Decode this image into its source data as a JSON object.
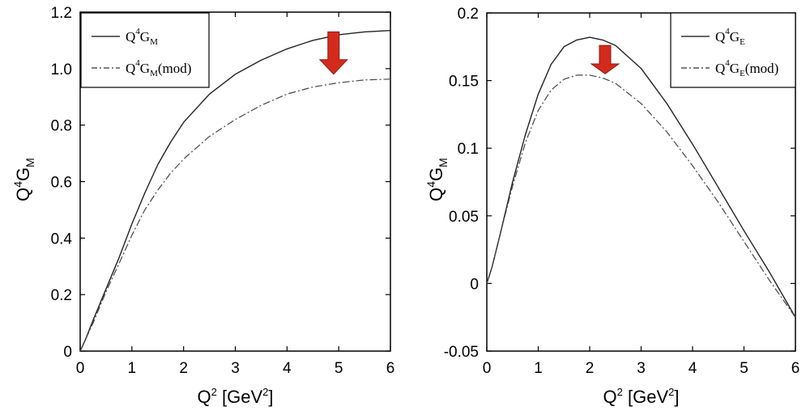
{
  "chart_data": [
    {
      "type": "line",
      "xlabel": "Q",
      "xlabel_sup": "2",
      "xlabel_unit_open": " [GeV",
      "xlabel_unit_sup": "2",
      "xlabel_unit_close": "]",
      "ylabel": "Q",
      "ylabel_sup": "4",
      "ylabel_main": "G",
      "ylabel_sub": "M",
      "xlim": [
        0,
        6
      ],
      "ylim": [
        0,
        1.2
      ],
      "x_ticks": [
        0,
        1,
        2,
        3,
        4,
        5,
        6
      ],
      "y_ticks": [
        0,
        0.2,
        0.4,
        0.6,
        0.8,
        1.0,
        1.2
      ],
      "x_tick_labels": [
        "0",
        "1",
        "2",
        "3",
        "4",
        "5",
        "6"
      ],
      "y_tick_labels": [
        "0",
        "0.2",
        "0.4",
        "0.6",
        "0.8",
        "1.0",
        "1.2"
      ],
      "legend_position": "top-left",
      "arrow": {
        "x": 4.9,
        "y_top": 1.13,
        "y_bottom": 0.98,
        "color": "#d42a1e"
      },
      "series": [
        {
          "name": "Q4GM",
          "legend": {
            "base": "Q",
            "sup": "4",
            "main": "G",
            "sub": "M",
            "suffix": ""
          },
          "style": "solid",
          "x": [
            0,
            0.1,
            0.25,
            0.5,
            0.75,
            1.0,
            1.25,
            1.5,
            1.75,
            2.0,
            2.5,
            3.0,
            3.5,
            4.0,
            4.5,
            5.0,
            5.5,
            6.0
          ],
          "y": [
            0,
            0.04,
            0.11,
            0.22,
            0.33,
            0.45,
            0.56,
            0.66,
            0.74,
            0.81,
            0.91,
            0.98,
            1.03,
            1.07,
            1.1,
            1.12,
            1.13,
            1.135
          ]
        },
        {
          "name": "Q4GM(mod)",
          "legend": {
            "base": "Q",
            "sup": "4",
            "main": "G",
            "sub": "M",
            "suffix": "(mod)"
          },
          "style": "dashdot",
          "x": [
            0,
            0.1,
            0.25,
            0.5,
            0.75,
            1.0,
            1.25,
            1.5,
            1.75,
            2.0,
            2.5,
            3.0,
            3.5,
            4.0,
            4.5,
            5.0,
            5.5,
            6.0
          ],
          "y": [
            0,
            0.04,
            0.1,
            0.21,
            0.31,
            0.41,
            0.5,
            0.57,
            0.63,
            0.68,
            0.76,
            0.82,
            0.87,
            0.91,
            0.935,
            0.95,
            0.96,
            0.963
          ]
        }
      ]
    },
    {
      "type": "line",
      "xlabel": "Q",
      "xlabel_sup": "2",
      "xlabel_unit_open": " [GeV",
      "xlabel_unit_sup": "2",
      "xlabel_unit_close": "]",
      "ylabel": "Q",
      "ylabel_sup": "4",
      "ylabel_main": "G",
      "ylabel_sub": "M",
      "xlim": [
        0,
        6
      ],
      "ylim": [
        -0.05,
        0.2
      ],
      "x_ticks": [
        0,
        1,
        2,
        3,
        4,
        5,
        6
      ],
      "y_ticks": [
        -0.05,
        0,
        0.05,
        0.1,
        0.15,
        0.2
      ],
      "x_tick_labels": [
        "0",
        "1",
        "2",
        "3",
        "4",
        "5",
        "6"
      ],
      "y_tick_labels": [
        "-0.05",
        "0",
        "0.05",
        "0.1",
        "0.15",
        "0.2"
      ],
      "legend_position": "top-right",
      "arrow": {
        "x": 2.3,
        "y_top": 0.176,
        "y_bottom": 0.155,
        "color": "#d42a1e"
      },
      "series": [
        {
          "name": "Q4GE",
          "legend": {
            "base": "Q",
            "sup": "4",
            "main": "G",
            "sub": "E",
            "suffix": ""
          },
          "style": "solid",
          "x": [
            0,
            0.1,
            0.25,
            0.5,
            0.75,
            1.0,
            1.25,
            1.5,
            1.75,
            2.0,
            2.25,
            2.5,
            3.0,
            3.5,
            4.0,
            4.5,
            5.0,
            5.5,
            6.0
          ],
          "y": [
            0,
            0.012,
            0.035,
            0.075,
            0.11,
            0.14,
            0.162,
            0.175,
            0.18,
            0.182,
            0.18,
            0.176,
            0.159,
            0.133,
            0.103,
            0.071,
            0.039,
            0.008,
            -0.025
          ]
        },
        {
          "name": "Q4GE(mod)",
          "legend": {
            "base": "Q",
            "sup": "4",
            "main": "G",
            "sub": "E",
            "suffix": "(mod)"
          },
          "style": "dashdot",
          "x": [
            0,
            0.1,
            0.25,
            0.5,
            0.75,
            1.0,
            1.25,
            1.5,
            1.75,
            2.0,
            2.25,
            2.5,
            3.0,
            3.5,
            4.0,
            4.5,
            5.0,
            5.5,
            6.0
          ],
          "y": [
            0,
            0.012,
            0.035,
            0.072,
            0.104,
            0.128,
            0.143,
            0.151,
            0.154,
            0.154,
            0.152,
            0.148,
            0.133,
            0.112,
            0.087,
            0.06,
            0.031,
            0.002,
            -0.025
          ]
        }
      ]
    }
  ]
}
